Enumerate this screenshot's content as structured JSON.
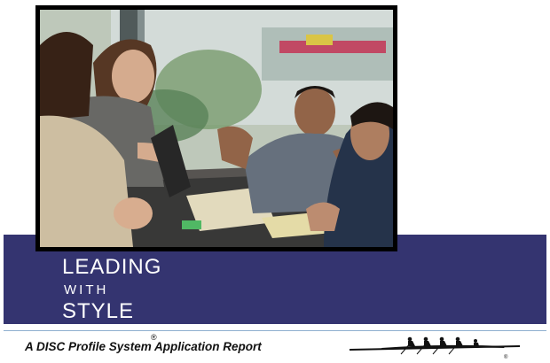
{
  "cover": {
    "title_line1": "LEADING",
    "title_line2": "WITH",
    "title_line3": "STYLE",
    "subtitle": "A DISC Profile System Application Report",
    "registered_mark": "®",
    "logo_mark": "®"
  },
  "colors": {
    "band": "#343470",
    "rule": "#8fb0cf",
    "title_text": "#ffffff"
  },
  "photo": {
    "subject": "meeting-photo"
  }
}
